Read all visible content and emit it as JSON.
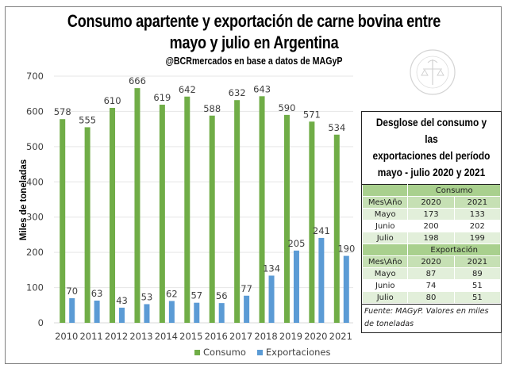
{
  "chart_data": {
    "type": "bar",
    "title": "Consumo apartente y exportación de carne bovina entre mayo y julio en Argentina",
    "title_line1": "Consumo apartente y exportación de carne bovina entre",
    "title_line2": "mayo y julio en Argentina",
    "subtitle": "@BCRmercados en base a datos de MAGyP",
    "xlabel": "",
    "ylabel": "Miles de toneladas",
    "ylim": [
      0,
      700
    ],
    "yticks": [
      0,
      100,
      200,
      300,
      400,
      500,
      600,
      700
    ],
    "grid": true,
    "legend_position": "bottom",
    "categories": [
      "2010",
      "2011",
      "2012",
      "2013",
      "2014",
      "2015",
      "2016",
      "2017",
      "2018",
      "2019",
      "2020",
      "2021"
    ],
    "series": [
      {
        "name": "Consumo",
        "color": "#70ad47",
        "values": [
          578,
          555,
          610,
          666,
          619,
          642,
          588,
          632,
          643,
          590,
          571,
          534
        ]
      },
      {
        "name": "Exportaciones",
        "color": "#5b9bd5",
        "values": [
          70,
          63,
          43,
          53,
          62,
          57,
          56,
          77,
          134,
          205,
          241,
          190
        ]
      }
    ]
  },
  "watermark": "Bolsa de Comercio de Rosario",
  "breakdown_table": {
    "title_line1": "Desglose del consumo y las",
    "title_line2": "exportaciones del período",
    "title_line3": "mayo - julio 2020 y 2021",
    "sections": [
      {
        "name": "Consumo",
        "row_header": "Mes\\Año",
        "years": [
          "2020",
          "2021"
        ],
        "rows": [
          {
            "month": "Mayo",
            "v2020": "173",
            "v2021": "133"
          },
          {
            "month": "Junio",
            "v2020": "200",
            "v2021": "202"
          },
          {
            "month": "Julio",
            "v2020": "198",
            "v2021": "199"
          }
        ]
      },
      {
        "name": "Exportación",
        "row_header": "Mes\\Año",
        "years": [
          "2020",
          "2021"
        ],
        "rows": [
          {
            "month": "Mayo",
            "v2020": "87",
            "v2021": "89"
          },
          {
            "month": "Junio",
            "v2020": "74",
            "v2021": "51"
          },
          {
            "month": "Julio",
            "v2020": "80",
            "v2021": "51"
          }
        ]
      }
    ],
    "source": "Fuente: MAGyP. Valores en miles de toneladas"
  }
}
